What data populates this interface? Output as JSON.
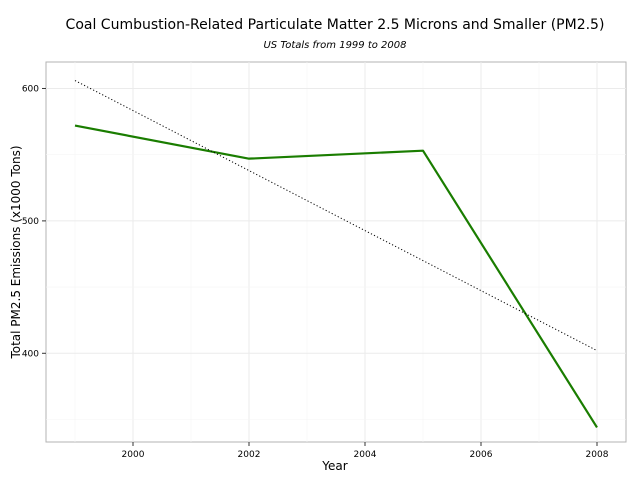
{
  "chart_data": {
    "type": "line",
    "title": "Coal Cumbustion-Related Particulate Matter 2.5 Microns and Smaller (PM2.5)",
    "subtitle": "US Totals from 1999 to 2008",
    "xlabel": "Year",
    "ylabel": "Total PM2.5 Emissions (x1000 Tons)",
    "xlim": [
      1998.5,
      2008.5
    ],
    "ylim": [
      333,
      620
    ],
    "x_ticks": [
      2000,
      2002,
      2004,
      2006,
      2008
    ],
    "y_ticks": [
      400,
      500,
      600
    ],
    "grid": true,
    "series": [
      {
        "x": [
          1999,
          2002,
          2005,
          2008
        ],
        "values": [
          572,
          547,
          553,
          344
        ],
        "color": "#1a7d00",
        "style": "solid"
      },
      {
        "x": [
          1999,
          2008
        ],
        "values": [
          606,
          402
        ],
        "color": "#000000",
        "style": "dotted"
      }
    ]
  }
}
